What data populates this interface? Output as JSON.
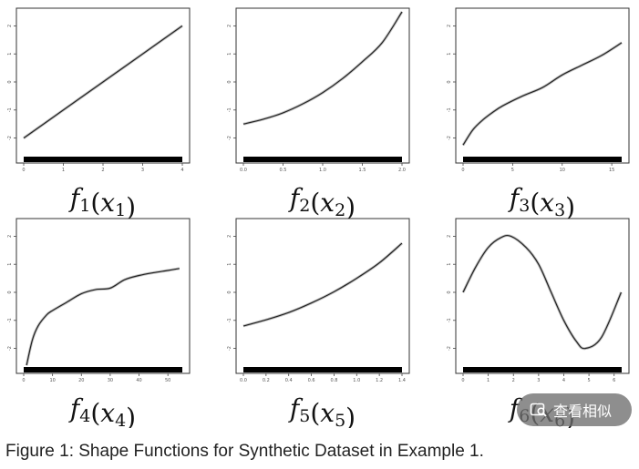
{
  "caption": "Figure 1: Shape Functions for Synthetic Dataset in Example 1.",
  "overlay": {
    "label": "查看相似",
    "icon": "image-search-icon",
    "bg_color": "#6e6e6e"
  },
  "chart_data": [
    {
      "type": "line",
      "title": "",
      "xlabel": "f1(x1)",
      "ylabel": "",
      "xlim": [
        0,
        4
      ],
      "ylim": [
        -2.5,
        2.5
      ],
      "xticks": [
        "0",
        "1",
        "2",
        "3",
        "4"
      ],
      "yticks": [
        "-2",
        "-1",
        "0",
        "1",
        "2"
      ],
      "series": [
        {
          "x": [
            0,
            1,
            2,
            3,
            4
          ],
          "y": [
            -2,
            -1,
            0,
            1,
            2
          ]
        }
      ]
    },
    {
      "type": "line",
      "title": "",
      "xlabel": "f2(x2)",
      "ylabel": "",
      "xlim": [
        0,
        2
      ],
      "ylim": [
        -2.5,
        2.5
      ],
      "xticks": [
        "0.0",
        "0.5",
        "1.0",
        "1.5",
        "2.0"
      ],
      "yticks": [
        "-2",
        "-1",
        "0",
        "1",
        "2"
      ],
      "series": [
        {
          "x": [
            0,
            0.25,
            0.5,
            0.75,
            1.0,
            1.25,
            1.5,
            1.75,
            2.0
          ],
          "y": [
            -1.5,
            -1.33,
            -1.1,
            -0.78,
            -0.38,
            0.12,
            0.72,
            1.4,
            2.5
          ]
        }
      ]
    },
    {
      "type": "line",
      "title": "",
      "xlabel": "f3(x3)",
      "ylabel": "",
      "xlim": [
        0,
        16
      ],
      "ylim": [
        -2.5,
        2.5
      ],
      "xticks": [
        "0",
        "5",
        "10",
        "15"
      ],
      "yticks": [
        "-2",
        "-1",
        "0",
        "1",
        "2"
      ],
      "series": [
        {
          "x": [
            0,
            1,
            2,
            3,
            4,
            6,
            8,
            10,
            12,
            14,
            16
          ],
          "y": [
            -2.25,
            -1.7,
            -1.35,
            -1.08,
            -0.85,
            -0.5,
            -0.2,
            0.25,
            0.6,
            0.95,
            1.4
          ]
        }
      ]
    },
    {
      "type": "line",
      "title": "",
      "xlabel": "f4(x4)",
      "ylabel": "",
      "xlim": [
        0,
        55
      ],
      "ylim": [
        -2.5,
        2.5
      ],
      "xticks": [
        "0",
        "10",
        "20",
        "30",
        "40",
        "50"
      ],
      "yticks": [
        "-2",
        "-1",
        "0",
        "1",
        "2"
      ],
      "series": [
        {
          "x": [
            1,
            3,
            5,
            8,
            10,
            15,
            20,
            25,
            30,
            35,
            40,
            45,
            50,
            54
          ],
          "y": [
            -2.6,
            -1.7,
            -1.2,
            -0.8,
            -0.65,
            -0.35,
            -0.05,
            0.1,
            0.15,
            0.45,
            0.6,
            0.7,
            0.78,
            0.85
          ]
        }
      ]
    },
    {
      "type": "line",
      "title": "",
      "xlabel": "f5(x5)",
      "ylabel": "",
      "xlim": [
        0,
        1.4
      ],
      "ylim": [
        -2.5,
        2.5
      ],
      "xticks": [
        "0.0",
        "0.2",
        "0.4",
        "0.6",
        "0.8",
        "1.0",
        "1.2",
        "1.4"
      ],
      "yticks": [
        "-2",
        "-1",
        "0",
        "1",
        "2"
      ],
      "series": [
        {
          "x": [
            0,
            0.2,
            0.4,
            0.6,
            0.8,
            1.0,
            1.2,
            1.4
          ],
          "y": [
            -1.2,
            -0.98,
            -0.72,
            -0.38,
            0.02,
            0.5,
            1.05,
            1.75
          ]
        }
      ]
    },
    {
      "type": "line",
      "title": "",
      "xlabel": "f6(x6)",
      "ylabel": "",
      "xlim": [
        0,
        6.3
      ],
      "ylim": [
        -2.5,
        2.5
      ],
      "xticks": [
        "0",
        "1",
        "2",
        "3",
        "4",
        "5",
        "6"
      ],
      "yticks": [
        "-2",
        "-1",
        "0",
        "1",
        "2"
      ],
      "series": [
        {
          "x": [
            0,
            0.5,
            1.0,
            1.5,
            1.9,
            2.5,
            3.0,
            3.5,
            4.0,
            4.5,
            4.85,
            5.5,
            6.28
          ],
          "y": [
            0.0,
            0.9,
            1.6,
            1.95,
            2.0,
            1.6,
            1.0,
            0.0,
            -1.0,
            -1.75,
            -2.0,
            -1.6,
            0.0
          ]
        }
      ]
    }
  ]
}
